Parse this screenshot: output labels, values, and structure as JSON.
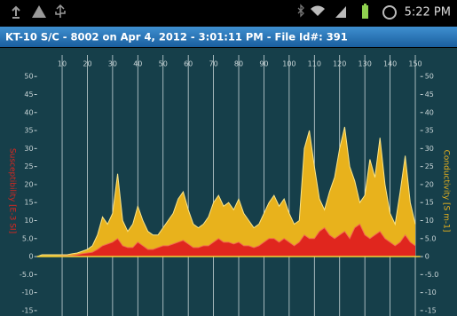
{
  "status_bar": {
    "time": "5:22 PM"
  },
  "app": {
    "title": "KT-10 S/C - 8002 on Apr 4, 2012 - 3:01:11 PM - File Id#: 391"
  },
  "chart_data": {
    "type": "area",
    "x": [
      0,
      2,
      4,
      6,
      8,
      10,
      12,
      14,
      16,
      18,
      20,
      22,
      24,
      26,
      28,
      30,
      32,
      34,
      36,
      38,
      40,
      42,
      44,
      46,
      48,
      50,
      52,
      54,
      56,
      58,
      60,
      62,
      64,
      66,
      68,
      70,
      72,
      74,
      76,
      78,
      80,
      82,
      84,
      86,
      88,
      90,
      92,
      94,
      96,
      98,
      100,
      102,
      104,
      106,
      108,
      110,
      112,
      114,
      116,
      118,
      120,
      122,
      124,
      126,
      128,
      130,
      132,
      134,
      136,
      138,
      140,
      142,
      144,
      146,
      148,
      150
    ],
    "series": [
      {
        "name": "Conductivity [S m-1]",
        "color": "#e8b21c",
        "axis": "y2",
        "values": [
          0,
          0.5,
          0.5,
          0.5,
          0.5,
          0.5,
          0.5,
          0.8,
          1,
          1.5,
          2,
          3,
          6,
          11,
          9,
          12,
          23,
          10,
          7,
          9,
          14,
          10,
          7,
          6,
          6,
          8,
          10,
          12,
          16,
          18,
          13,
          9,
          8,
          9,
          11,
          15,
          17,
          14,
          15,
          13,
          16,
          12,
          10,
          8,
          9,
          12,
          15,
          17,
          14,
          16,
          12,
          9,
          10,
          30,
          35,
          25,
          16,
          13,
          18,
          22,
          30,
          36,
          25,
          21,
          15,
          17,
          27,
          22,
          33,
          20,
          12,
          9,
          18,
          28,
          15,
          9
        ]
      },
      {
        "name": "Susceptibility [E-3 SI]",
        "color": "#e0261e",
        "axis": "y",
        "values": [
          0,
          0,
          0,
          0,
          0,
          0.2,
          0.2,
          0.3,
          0.5,
          0.8,
          1,
          1.2,
          2,
          3,
          3.5,
          4,
          5,
          3,
          2.5,
          2.5,
          4,
          3,
          2,
          2,
          2.5,
          3,
          3,
          3.5,
          4,
          4.5,
          3.5,
          2.5,
          2.5,
          3,
          3,
          4,
          5,
          4,
          4,
          3.5,
          4,
          3,
          3,
          2.5,
          3,
          4,
          5,
          5,
          4,
          5,
          4,
          3,
          4,
          6,
          5,
          5,
          7,
          8,
          6,
          5,
          6,
          7,
          5,
          8,
          9,
          6,
          5,
          6,
          7,
          5,
          4,
          3,
          4,
          6,
          4,
          3
        ]
      }
    ],
    "xlim": [
      0,
      152
    ],
    "xticks": [
      10,
      20,
      30,
      40,
      50,
      60,
      70,
      80,
      90,
      100,
      110,
      120,
      130,
      140,
      150
    ],
    "ylim": [
      -16.5,
      53.5
    ],
    "yticks": [
      50,
      45,
      40,
      35,
      30,
      25,
      20,
      15,
      10,
      {
        "value": 5,
        "label": "5.0"
      },
      0,
      {
        "value": -5,
        "label": "-5.0"
      },
      -10,
      -15
    ],
    "y2lim": [
      -16.5,
      53.5
    ],
    "y2ticks": [
      50,
      45,
      40,
      35,
      30,
      25,
      20,
      15,
      10,
      {
        "value": 5,
        "label": "5.0"
      },
      0,
      {
        "value": -5,
        "label": "-5.0"
      },
      -10,
      -15
    ],
    "grid": true
  }
}
